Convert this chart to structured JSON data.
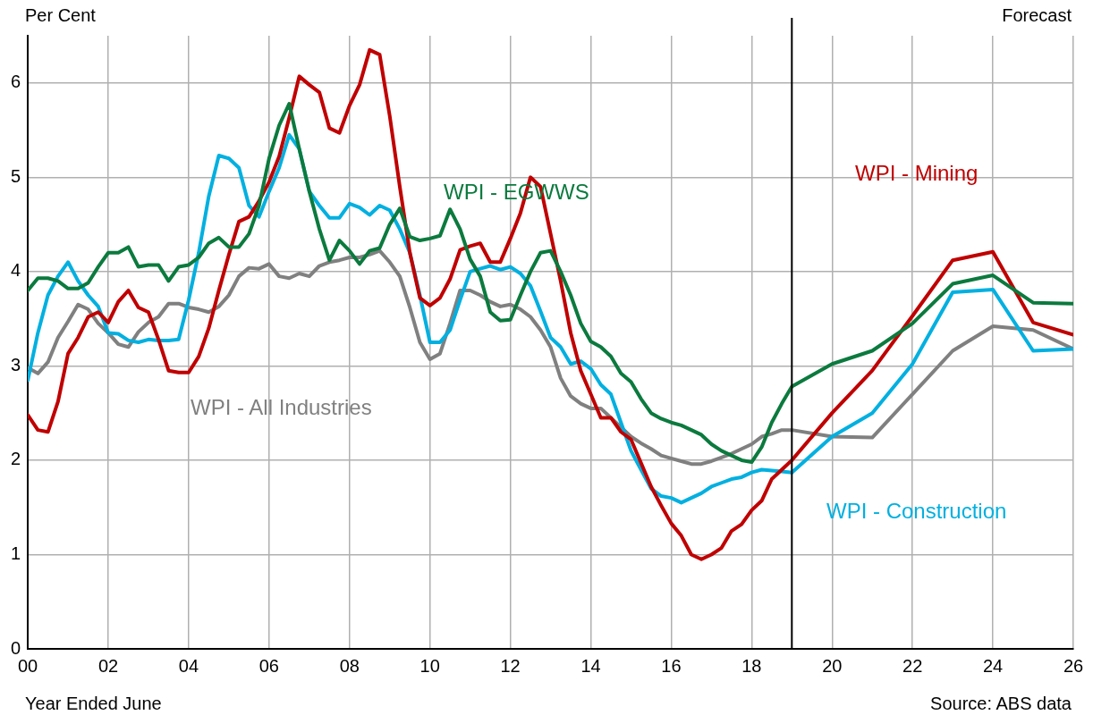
{
  "chart_data": {
    "type": "line",
    "xlabel": "Year Ended June",
    "ylabel": "Per Cent",
    "x": [
      0,
      0.25,
      0.5,
      0.75,
      1,
      1.25,
      1.5,
      1.75,
      2,
      2.25,
      2.5,
      2.75,
      3,
      3.25,
      3.5,
      3.75,
      4,
      4.25,
      4.5,
      4.75,
      5,
      5.25,
      5.5,
      5.75,
      6,
      6.25,
      6.5,
      6.75,
      7,
      7.25,
      7.5,
      7.75,
      8,
      8.25,
      8.5,
      8.75,
      9,
      9.25,
      9.5,
      9.75,
      10,
      10.25,
      10.5,
      10.75,
      11,
      11.25,
      11.5,
      11.75,
      12,
      12.25,
      12.5,
      12.75,
      13,
      13.25,
      13.5,
      13.75,
      14,
      14.25,
      14.5,
      14.75,
      15,
      15.25,
      15.5,
      15.75,
      16,
      16.25,
      16.5,
      16.75,
      17,
      17.25,
      17.5,
      17.75,
      18,
      18.25,
      18.5,
      18.75,
      19,
      20,
      21,
      22,
      23,
      24,
      25,
      26
    ],
    "series": [
      {
        "name": "WPI - EGWWS",
        "color": "#0b7a3e",
        "values": [
          3.8,
          3.93,
          3.93,
          3.9,
          3.82,
          3.82,
          3.88,
          4.05,
          4.2,
          4.2,
          4.26,
          4.05,
          4.07,
          4.07,
          3.9,
          4.05,
          4.07,
          4.15,
          4.3,
          4.36,
          4.26,
          4.26,
          4.4,
          4.7,
          5.2,
          5.55,
          5.78,
          5.3,
          4.85,
          4.45,
          4.12,
          4.33,
          4.22,
          4.08,
          4.22,
          4.25,
          4.5,
          4.67,
          4.37,
          4.33,
          4.35,
          4.38,
          4.66,
          4.45,
          4.13,
          3.95,
          3.57,
          3.48,
          3.49,
          3.75,
          4.0,
          4.2,
          4.22,
          4.0,
          3.75,
          3.45,
          3.26,
          3.2,
          3.1,
          2.92,
          2.83,
          2.65,
          2.5,
          2.44,
          2.4,
          2.37,
          2.32,
          2.27,
          2.17,
          2.1,
          2.05,
          2.0,
          1.98,
          2.14,
          2.4,
          2.6,
          2.78,
          3.02,
          3.16,
          3.45,
          3.87,
          3.96,
          3.67,
          3.66
        ]
      },
      {
        "name": "WPI - Mining",
        "color": "#c00000",
        "values": [
          2.48,
          2.32,
          2.3,
          2.62,
          3.13,
          3.3,
          3.52,
          3.57,
          3.46,
          3.68,
          3.8,
          3.62,
          3.57,
          3.28,
          2.95,
          2.93,
          2.93,
          3.1,
          3.4,
          3.8,
          4.18,
          4.53,
          4.58,
          4.75,
          4.95,
          5.22,
          5.63,
          6.07,
          5.98,
          5.9,
          5.52,
          5.47,
          5.76,
          5.98,
          6.35,
          6.3,
          5.65,
          4.9,
          4.2,
          3.72,
          3.64,
          3.72,
          3.92,
          4.23,
          4.27,
          4.3,
          4.1,
          4.1,
          4.35,
          4.62,
          5.0,
          4.9,
          4.4,
          3.9,
          3.35,
          2.95,
          2.7,
          2.45,
          2.45,
          2.3,
          2.22,
          1.97,
          1.72,
          1.52,
          1.33,
          1.2,
          1.0,
          0.95,
          1.0,
          1.07,
          1.25,
          1.32,
          1.47,
          1.57,
          1.8,
          1.9,
          2.0,
          2.5,
          2.95,
          3.53,
          4.12,
          4.21,
          3.46,
          3.33
        ]
      },
      {
        "name": "WPI - Construction",
        "color": "#00b0e0",
        "values": [
          2.85,
          3.35,
          3.75,
          3.95,
          4.1,
          3.9,
          3.75,
          3.63,
          3.35,
          3.34,
          3.27,
          3.25,
          3.28,
          3.27,
          3.27,
          3.28,
          3.7,
          4.2,
          4.8,
          5.23,
          5.2,
          5.1,
          4.7,
          4.58,
          4.85,
          5.1,
          5.45,
          5.3,
          4.85,
          4.7,
          4.57,
          4.57,
          4.72,
          4.68,
          4.6,
          4.7,
          4.65,
          4.45,
          4.2,
          3.75,
          3.25,
          3.25,
          3.38,
          3.7,
          4.0,
          4.03,
          4.06,
          4.02,
          4.05,
          3.98,
          3.85,
          3.58,
          3.3,
          3.2,
          3.02,
          3.05,
          2.97,
          2.8,
          2.7,
          2.4,
          2.1,
          1.9,
          1.7,
          1.62,
          1.6,
          1.55,
          1.6,
          1.65,
          1.72,
          1.76,
          1.8,
          1.82,
          1.87,
          1.9,
          1.89,
          1.88,
          1.87,
          2.25,
          2.5,
          3.02,
          3.78,
          3.81,
          3.16,
          3.18
        ]
      },
      {
        "name": "WPI - All Industries",
        "color": "#808080",
        "values": [
          2.98,
          2.92,
          3.04,
          3.3,
          3.47,
          3.65,
          3.6,
          3.45,
          3.35,
          3.23,
          3.2,
          3.36,
          3.46,
          3.52,
          3.66,
          3.66,
          3.62,
          3.6,
          3.57,
          3.63,
          3.75,
          3.95,
          4.04,
          4.03,
          4.08,
          3.95,
          3.93,
          3.98,
          3.95,
          4.06,
          4.1,
          4.12,
          4.15,
          4.15,
          4.18,
          4.22,
          4.1,
          3.95,
          3.62,
          3.25,
          3.07,
          3.13,
          3.45,
          3.8,
          3.8,
          3.75,
          3.68,
          3.63,
          3.65,
          3.6,
          3.52,
          3.38,
          3.2,
          2.87,
          2.68,
          2.6,
          2.55,
          2.55,
          2.45,
          2.35,
          2.25,
          2.18,
          2.12,
          2.05,
          2.02,
          1.99,
          1.96,
          1.96,
          1.99,
          2.03,
          2.07,
          2.12,
          2.17,
          2.25,
          2.28,
          2.32,
          2.32,
          2.25,
          2.24,
          2.7,
          3.16,
          3.42,
          3.38,
          3.18
        ]
      }
    ],
    "xlim": [
      0,
      26
    ],
    "xticks": [
      {
        "value": 0,
        "label": "00"
      },
      {
        "value": 2,
        "label": "02"
      },
      {
        "value": 4,
        "label": "04"
      },
      {
        "value": 6,
        "label": "06"
      },
      {
        "value": 8,
        "label": "08"
      },
      10,
      12,
      14,
      16,
      18,
      20,
      22,
      24,
      26
    ],
    "ylim": [
      0,
      6.5
    ],
    "yticks": [
      0,
      1,
      2,
      3,
      4,
      5,
      6
    ],
    "grid": true,
    "legend": false,
    "marker": "none",
    "line_style": "solid",
    "ref_lines": [
      {
        "axis": "x",
        "value": 19,
        "label": "Forecast",
        "color": "#000000"
      }
    ],
    "annotations": [
      "Source: ABS data"
    ]
  }
}
